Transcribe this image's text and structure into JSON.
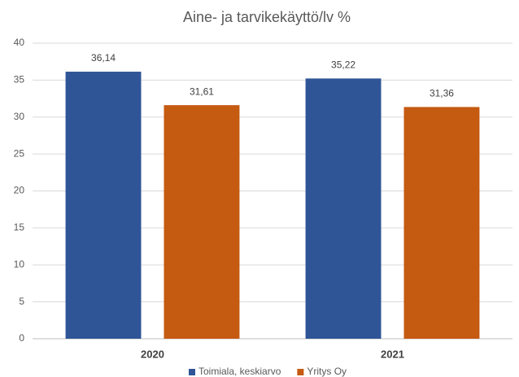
{
  "chart_data": {
    "type": "bar",
    "title": "Aine- ja tarvikekäyttö/lv %",
    "categories": [
      "2020",
      "2021"
    ],
    "series": [
      {
        "name": "Toimiala, keskiarvo",
        "color": "#2f5597",
        "values": [
          36.14,
          35.22
        ],
        "value_labels": [
          "36,14",
          "35,22"
        ]
      },
      {
        "name": "Yritys Oy",
        "color": "#c55a11",
        "values": [
          31.61,
          31.36
        ],
        "value_labels": [
          "31,61",
          "31,36"
        ]
      }
    ],
    "ylim": [
      0,
      40
    ],
    "yticks": [
      0,
      5,
      10,
      15,
      20,
      25,
      30,
      35,
      40
    ],
    "grid": true,
    "legend": "bottom"
  }
}
